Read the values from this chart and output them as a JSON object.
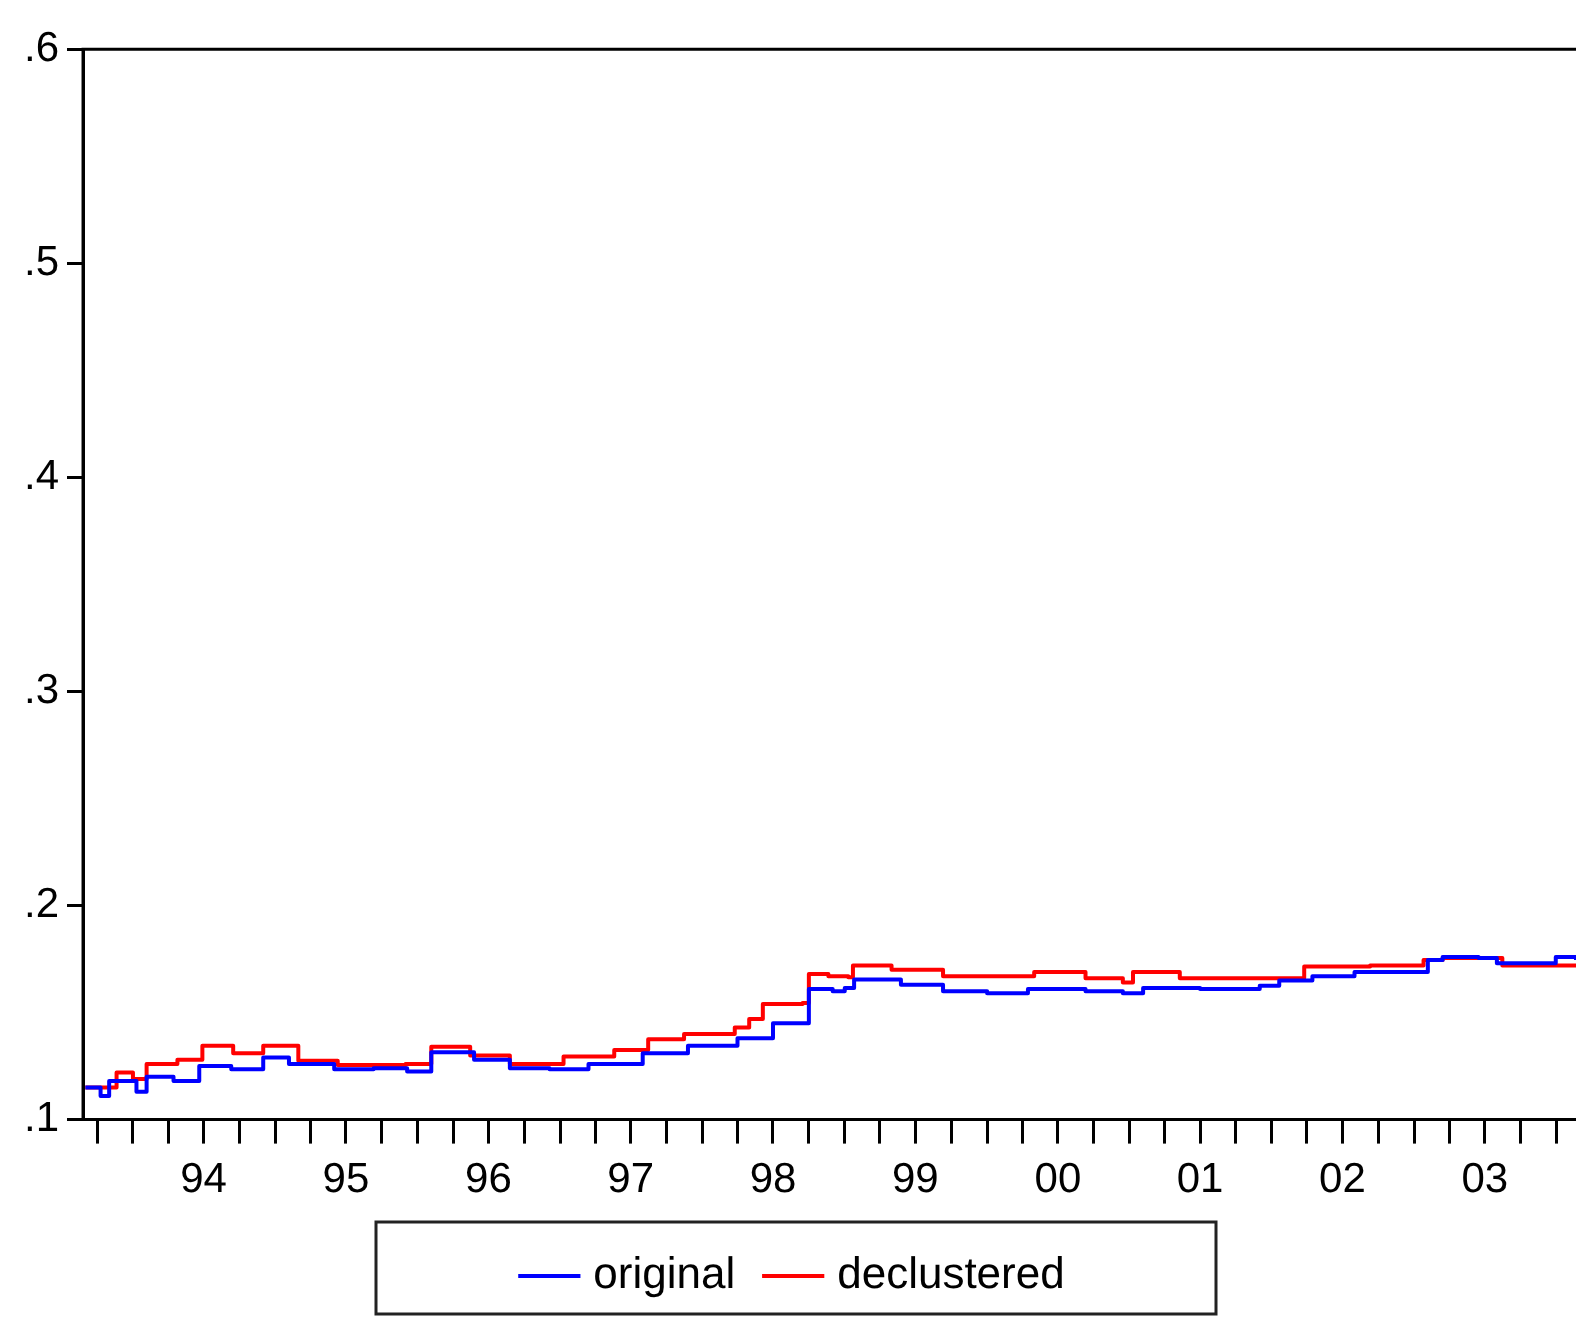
{
  "chart_data": {
    "type": "step",
    "xlim": [
      "1993-08-26",
      "2004-02-20"
    ],
    "xticks": [
      {
        "value": "1993-10-01",
        "label": null
      },
      {
        "value": "1994-01-01",
        "label": null
      },
      {
        "value": "1994-04-01",
        "label": null
      },
      {
        "value": "1994-07-01",
        "label": "94"
      },
      {
        "value": "1994-10-01",
        "label": null
      },
      {
        "value": "1995-01-01",
        "label": null
      },
      {
        "value": "1995-04-01",
        "label": null
      },
      {
        "value": "1995-07-01",
        "label": "95"
      },
      {
        "value": "1995-10-01",
        "label": null
      },
      {
        "value": "1996-01-01",
        "label": null
      },
      {
        "value": "1996-04-01",
        "label": null
      },
      {
        "value": "1996-07-01",
        "label": "96"
      },
      {
        "value": "1996-10-01",
        "label": null
      },
      {
        "value": "1997-01-01",
        "label": null
      },
      {
        "value": "1997-04-01",
        "label": null
      },
      {
        "value": "1997-07-01",
        "label": "97"
      },
      {
        "value": "1997-10-01",
        "label": null
      },
      {
        "value": "1998-01-01",
        "label": null
      },
      {
        "value": "1998-04-01",
        "label": null
      },
      {
        "value": "1998-07-01",
        "label": "98"
      },
      {
        "value": "1998-10-01",
        "label": null
      },
      {
        "value": "1999-01-01",
        "label": null
      },
      {
        "value": "1999-04-01",
        "label": null
      },
      {
        "value": "1999-07-01",
        "label": "99"
      },
      {
        "value": "1999-10-01",
        "label": null
      },
      {
        "value": "2000-01-01",
        "label": null
      },
      {
        "value": "2000-04-01",
        "label": null
      },
      {
        "value": "2000-07-01",
        "label": "00"
      },
      {
        "value": "2000-10-01",
        "label": null
      },
      {
        "value": "2001-01-01",
        "label": null
      },
      {
        "value": "2001-04-01",
        "label": null
      },
      {
        "value": "2001-07-01",
        "label": "01"
      },
      {
        "value": "2001-10-01",
        "label": null
      },
      {
        "value": "2002-01-01",
        "label": null
      },
      {
        "value": "2002-04-01",
        "label": null
      },
      {
        "value": "2002-07-01",
        "label": "02"
      },
      {
        "value": "2002-10-01",
        "label": null
      },
      {
        "value": "2003-01-01",
        "label": null
      },
      {
        "value": "2003-04-01",
        "label": null
      },
      {
        "value": "2003-07-01",
        "label": "03"
      },
      {
        "value": "2003-10-01",
        "label": null
      },
      {
        "value": "2004-01-01",
        "label": null
      }
    ],
    "ylim": [
      0.1,
      0.6
    ],
    "yticks": [
      {
        "value": 0.1,
        "label": ".1"
      },
      {
        "value": 0.2,
        "label": ".2"
      },
      {
        "value": 0.3,
        "label": ".3"
      },
      {
        "value": 0.4,
        "label": ".4"
      },
      {
        "value": 0.5,
        "label": ".5"
      },
      {
        "value": 0.6,
        "label": ".6"
      }
    ],
    "grid": false,
    "legend": "bottom",
    "line_style": "solid",
    "marker": "none",
    "series": [
      {
        "name": "original",
        "color": "#0000ff",
        "x": [
          "1993-09-01",
          "1993-10-10",
          "1993-11-01",
          "1994-01-10",
          "1994-02-05",
          "1994-04-15",
          "1994-06-20",
          "1994-09-10",
          "1994-12-01",
          "1995-02-05",
          "1995-06-01",
          "1995-09-10",
          "1995-12-05",
          "1996-02-05",
          "1996-05-25",
          "1996-08-25",
          "1996-12-05",
          "1997-03-15",
          "1997-08-01",
          "1997-11-25",
          "1998-04-01",
          "1998-07-01",
          "1998-10-01",
          "1998-12-01",
          "1999-01-01",
          "1999-01-25",
          "1999-05-25",
          "1999-09-10",
          "2000-01-01",
          "2000-04-15",
          "2000-09-10",
          "2000-12-15",
          "2001-02-05",
          "2001-07-01",
          "2001-12-01",
          "2002-01-20",
          "2002-04-15",
          "2002-08-01",
          "2002-12-15",
          "2003-02-05",
          "2003-03-15",
          "2003-06-15",
          "2003-08-01",
          "2003-12-30",
          "2004-02-20"
        ],
        "values": [
          0.115,
          0.111,
          0.118,
          0.113,
          0.12,
          0.118,
          0.125,
          0.1235,
          0.129,
          0.126,
          0.1235,
          0.124,
          0.1225,
          0.1315,
          0.128,
          0.124,
          0.1235,
          0.126,
          0.131,
          0.1345,
          0.138,
          0.145,
          0.161,
          0.16,
          0.1615,
          0.1655,
          0.163,
          0.16,
          0.159,
          0.161,
          0.16,
          0.159,
          0.1615,
          0.161,
          0.1625,
          0.165,
          0.167,
          0.169,
          0.169,
          0.1745,
          0.176,
          0.1755,
          0.173,
          0.176,
          0.1745
        ]
      },
      {
        "name": "declustered",
        "color": "#ff0000",
        "x": [
          "1993-09-01",
          "1993-11-20",
          "1994-01-01",
          "1994-02-05",
          "1994-04-25",
          "1994-06-28",
          "1994-09-15",
          "1994-12-01",
          "1995-03-01",
          "1995-06-10",
          "1995-09-05",
          "1995-12-01",
          "1996-02-05",
          "1996-05-15",
          "1996-08-25",
          "1996-12-05",
          "1997-01-10",
          "1997-05-20",
          "1997-08-15",
          "1997-11-15",
          "1998-03-25",
          "1998-05-01",
          "1998-06-05",
          "1998-09-15",
          "1998-10-01",
          "1998-11-20",
          "1999-01-10",
          "1999-01-22",
          "1999-05-01",
          "1999-09-10",
          "2000-04-01",
          "2000-05-01",
          "2000-09-10",
          "2000-12-15",
          "2001-01-10",
          "2001-05-10",
          "2001-12-15",
          "2002-03-25",
          "2002-09-10",
          "2002-12-25",
          "2003-01-25",
          "2003-03-15",
          "2003-08-15",
          "2004-02-20"
        ],
        "values": [
          0.115,
          0.122,
          0.119,
          0.126,
          0.128,
          0.1345,
          0.131,
          0.1345,
          0.1275,
          0.1255,
          0.1255,
          0.126,
          0.134,
          0.13,
          0.126,
          0.126,
          0.1295,
          0.1325,
          0.1375,
          0.14,
          0.143,
          0.147,
          0.154,
          0.1545,
          0.168,
          0.167,
          0.1665,
          0.172,
          0.17,
          0.167,
          0.167,
          0.169,
          0.166,
          0.164,
          0.169,
          0.166,
          0.166,
          0.1715,
          0.172,
          0.172,
          0.1745,
          0.1755,
          0.172,
          0.172
        ]
      }
    ]
  }
}
